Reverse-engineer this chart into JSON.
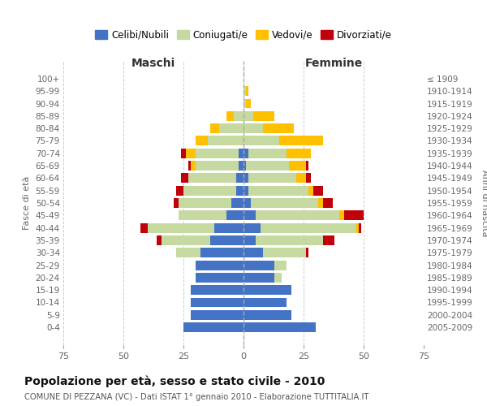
{
  "age_groups": [
    "0-4",
    "5-9",
    "10-14",
    "15-19",
    "20-24",
    "25-29",
    "30-34",
    "35-39",
    "40-44",
    "45-49",
    "50-54",
    "55-59",
    "60-64",
    "65-69",
    "70-74",
    "75-79",
    "80-84",
    "85-89",
    "90-94",
    "95-99",
    "100+"
  ],
  "birth_years": [
    "2005-2009",
    "2000-2004",
    "1995-1999",
    "1990-1994",
    "1985-1989",
    "1980-1984",
    "1975-1979",
    "1970-1974",
    "1965-1969",
    "1960-1964",
    "1955-1959",
    "1950-1954",
    "1945-1949",
    "1940-1944",
    "1935-1939",
    "1930-1934",
    "1925-1929",
    "1920-1924",
    "1915-1919",
    "1910-1914",
    "≤ 1909"
  ],
  "male": {
    "celibi": [
      25,
      22,
      22,
      22,
      20,
      20,
      18,
      14,
      12,
      7,
      5,
      3,
      3,
      2,
      2,
      0,
      0,
      0,
      0,
      0,
      0
    ],
    "coniugati": [
      0,
      0,
      0,
      0,
      0,
      0,
      10,
      20,
      28,
      20,
      22,
      22,
      20,
      18,
      18,
      15,
      10,
      4,
      0,
      0,
      0
    ],
    "vedovi": [
      0,
      0,
      0,
      0,
      0,
      0,
      0,
      0,
      0,
      0,
      0,
      0,
      0,
      2,
      4,
      5,
      4,
      3,
      0,
      0,
      0
    ],
    "divorziati": [
      0,
      0,
      0,
      0,
      0,
      0,
      0,
      2,
      3,
      0,
      2,
      3,
      3,
      1,
      2,
      0,
      0,
      0,
      0,
      0,
      0
    ]
  },
  "female": {
    "nubili": [
      30,
      20,
      18,
      20,
      13,
      13,
      8,
      5,
      7,
      5,
      3,
      2,
      2,
      1,
      2,
      0,
      0,
      0,
      0,
      0,
      0
    ],
    "coniugate": [
      0,
      0,
      0,
      0,
      3,
      5,
      18,
      28,
      40,
      35,
      28,
      25,
      20,
      18,
      16,
      15,
      8,
      4,
      1,
      1,
      0
    ],
    "vedove": [
      0,
      0,
      0,
      0,
      0,
      0,
      0,
      0,
      1,
      2,
      2,
      2,
      4,
      7,
      10,
      18,
      13,
      9,
      2,
      1,
      0
    ],
    "divorziate": [
      0,
      0,
      0,
      0,
      0,
      0,
      1,
      5,
      1,
      8,
      4,
      4,
      2,
      1,
      0,
      0,
      0,
      0,
      0,
      0,
      0
    ]
  },
  "colors": {
    "celibi": "#4472c4",
    "coniugati": "#c5d9a0",
    "vedovi": "#ffc000",
    "divorziati": "#c0000b"
  },
  "xlim": 75,
  "title": "Popolazione per età, sesso e stato civile - 2010",
  "subtitle": "COMUNE DI PEZZANA (VC) - Dati ISTAT 1° gennaio 2010 - Elaborazione TUTTITALIA.IT",
  "ylabel_left": "Fasce di età",
  "ylabel_right": "Anni di nascita",
  "xlabel_maschi": "Maschi",
  "xlabel_femmine": "Femmine",
  "legend_labels": [
    "Celibi/Nubili",
    "Coniugati/e",
    "Vedovi/e",
    "Divorziati/e"
  ]
}
